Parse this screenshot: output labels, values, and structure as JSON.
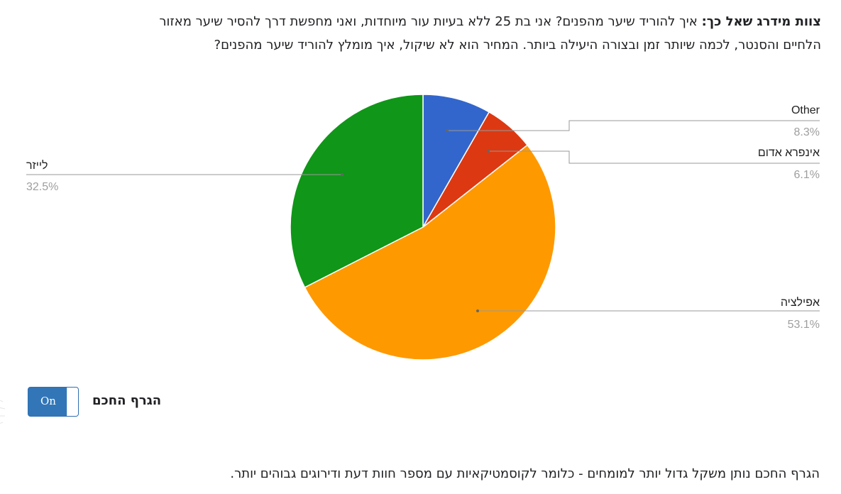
{
  "question": {
    "bold_prefix": "צוות מידרג שאל כך:",
    "line1_rest": " איך להוריד שיער מהפנים? אני בת 25 ללא בעיות עור מיוחדות, ואני מחפשת דרך להסיר שיער מאזור",
    "line2": "הלחיים והסנטר, לכמה שיותר זמן ובצורה היעילה ביותר. המחיר הוא לא שיקול, איך מומלץ להוריד שיער מהפנים?"
  },
  "chart_data": {
    "type": "pie",
    "title": "",
    "categories": [
      "Other",
      "אינפרא אדום",
      "אפילציה",
      "לייזר"
    ],
    "values": [
      8.3,
      6.1,
      53.1,
      32.5
    ],
    "labels": [
      "8.3%",
      "6.1%",
      "53.1%",
      "32.5%"
    ],
    "colors": [
      "#3366cc",
      "#dc3912",
      "#ff9900",
      "#109618"
    ],
    "start_angle_deg": 0,
    "direction": "clockwise"
  },
  "toggle": {
    "label": "On",
    "state": "on",
    "color": "#3276b8"
  },
  "smart_graph_label": "הגרף החכם",
  "footnote": "הגרף החכם נותן משקל גדול יותר למומחים - כלומר לקוסמטיקאיות עם מספר חוות דעת ודירוגים גבוהים יותר."
}
